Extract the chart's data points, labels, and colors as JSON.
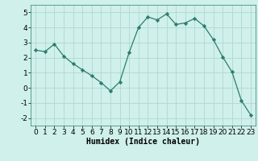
{
  "x": [
    0,
    1,
    2,
    3,
    4,
    5,
    6,
    7,
    8,
    9,
    10,
    11,
    12,
    13,
    14,
    15,
    16,
    17,
    18,
    19,
    20,
    21,
    22,
    23
  ],
  "y": [
    2.5,
    2.4,
    2.9,
    2.1,
    1.6,
    1.2,
    0.8,
    0.35,
    -0.2,
    0.4,
    2.35,
    4.0,
    4.7,
    4.5,
    4.9,
    4.2,
    4.3,
    4.6,
    4.1,
    3.2,
    2.05,
    1.05,
    -0.85,
    -1.8
  ],
  "line_color": "#2e7d6e",
  "marker": "D",
  "marker_size": 2.2,
  "bg_color": "#cff0eb",
  "grid_color": "#b0d8d2",
  "xlabel": "Humidex (Indice chaleur)",
  "xlim": [
    -0.5,
    23.5
  ],
  "ylim": [
    -2.5,
    5.5
  ],
  "yticks": [
    -2,
    -1,
    0,
    1,
    2,
    3,
    4,
    5
  ],
  "xticks": [
    0,
    1,
    2,
    3,
    4,
    5,
    6,
    7,
    8,
    9,
    10,
    11,
    12,
    13,
    14,
    15,
    16,
    17,
    18,
    19,
    20,
    21,
    22,
    23
  ],
  "label_fontsize": 7,
  "tick_fontsize": 6.5
}
